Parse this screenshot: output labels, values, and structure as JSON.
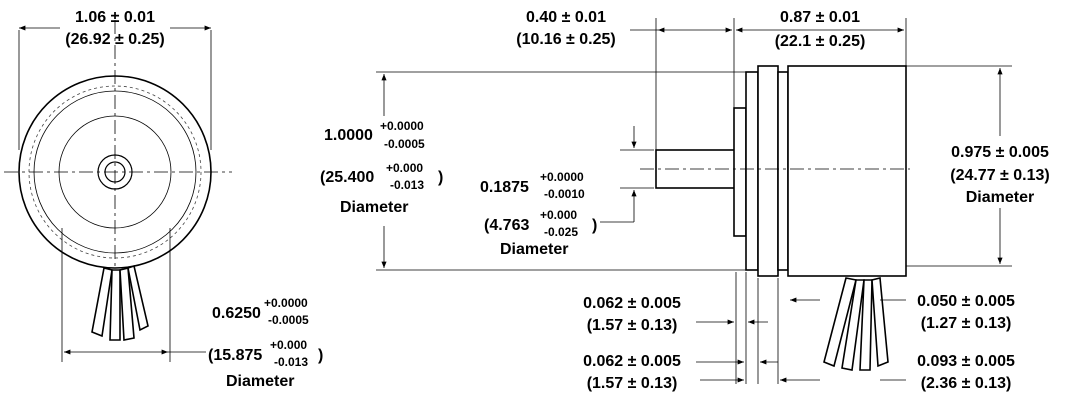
{
  "front_view": {
    "outer_dia": {
      "in": "1.06 ± 0.01",
      "mm": "(26.92 ± 0.25)"
    },
    "shaft_flat_dia": {
      "in_main": "0.6250",
      "in_plus": "+0.0000",
      "in_minus": "-0.0005",
      "mm_main": "(15.875",
      "mm_plus": "+0.000",
      "mm_minus": "-0.013",
      "mm_close": ")",
      "label": "Diameter"
    }
  },
  "side_view": {
    "shaft_length": {
      "in": "0.40 ± 0.01",
      "mm": "(10.16 ± 0.25)"
    },
    "body_length": {
      "in": "0.87 ± 0.01",
      "mm": "(22.1 ± 0.25)"
    },
    "pilot_dia": {
      "in_main": "1.0000",
      "in_plus": "+0.0000",
      "in_minus": "-0.0005",
      "mm_main": "(25.400",
      "mm_plus": "+0.000",
      "mm_minus": "-0.013",
      "mm_close": ")",
      "label": "Diameter"
    },
    "shaft_dia": {
      "in_main": "0.1875",
      "in_plus": "+0.0000",
      "in_minus": "-0.0010",
      "mm_main": "(4.763",
      "mm_plus": "+0.000",
      "mm_minus": "-0.025",
      "mm_close": ")",
      "label": "Diameter"
    },
    "body_dia": {
      "in": "0.975 ± 0.005",
      "mm": "(24.77 ± 0.13)",
      "label": "Diameter"
    },
    "flange_a": {
      "in": "0.062 ± 0.005",
      "mm": "(1.57 ± 0.13)"
    },
    "flange_b": {
      "in": "0.062 ± 0.005",
      "mm": "(1.57 ± 0.13)"
    },
    "gap": {
      "in": "0.050 ± 0.005",
      "mm": "(1.27 ± 0.13)"
    },
    "step": {
      "in": "0.093 ± 0.005",
      "mm": "(2.36 ± 0.13)"
    }
  }
}
